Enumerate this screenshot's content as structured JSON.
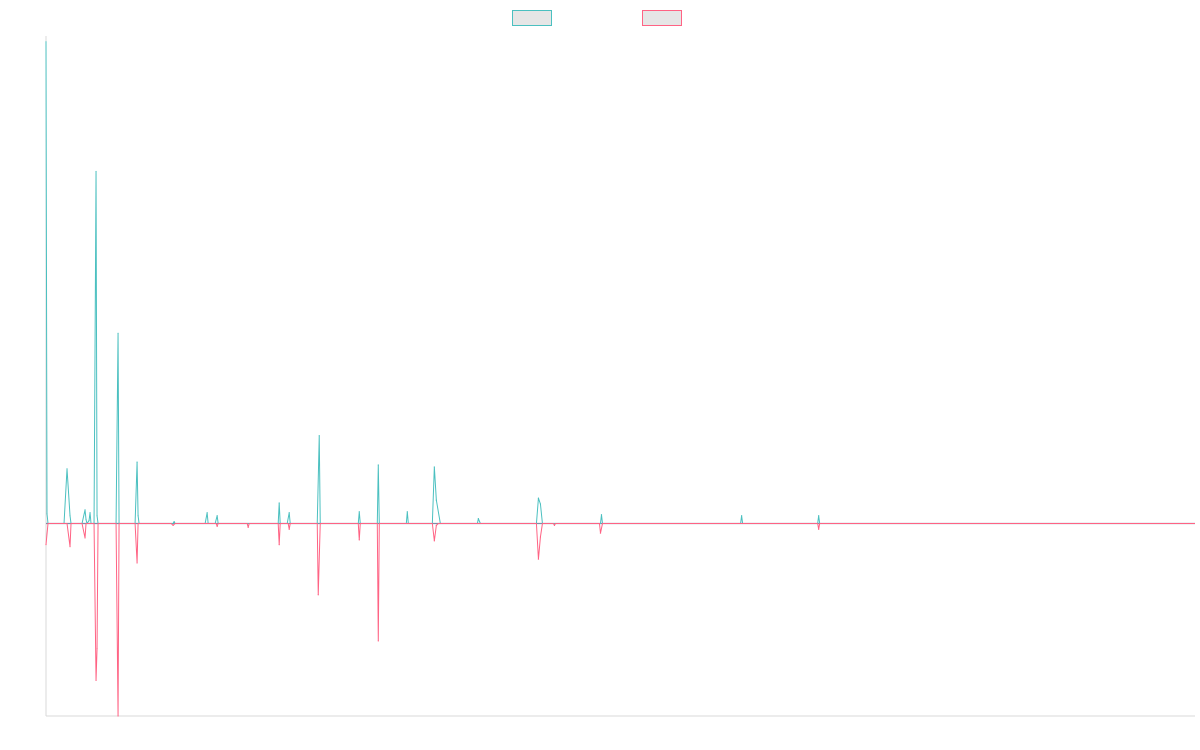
{
  "colors": {
    "series_up": "#4bc0c0",
    "series_down": "#ff6384",
    "legend_fill": "#e6e6e6",
    "axis": "#d9d9d9",
    "baseline": "#7d8ea8"
  },
  "chart_data": {
    "type": "line",
    "title": "",
    "xlabel": "",
    "ylabel": "",
    "legend": {
      "position": "top",
      "entries": [
        {
          "label": ""
        },
        {
          "label": ""
        }
      ]
    },
    "grid": false,
    "ylim": [
      -0.2,
      0.5
    ],
    "x": [
      0,
      1,
      2,
      3,
      4,
      5,
      6,
      7,
      8,
      9,
      10,
      11,
      12,
      13,
      14,
      15,
      16,
      17,
      18,
      19,
      20,
      21,
      22,
      23,
      24,
      25,
      26,
      27,
      28,
      29,
      30,
      31,
      32,
      33,
      34,
      35,
      36,
      37,
      38,
      39,
      40,
      41,
      42,
      43,
      44,
      45,
      46,
      47,
      48,
      49,
      50,
      51,
      52,
      53,
      54,
      55,
      56,
      57,
      58,
      59,
      60,
      61,
      62,
      63,
      64,
      65,
      66,
      67,
      68,
      69,
      70,
      71,
      72,
      73,
      74,
      75,
      76,
      77,
      78,
      79,
      80,
      81,
      82,
      83,
      84,
      85,
      86,
      87,
      88,
      89,
      90,
      91,
      92,
      93,
      94,
      95,
      96,
      97,
      98,
      99,
      100,
      101,
      102,
      103,
      104,
      105,
      106,
      107,
      108,
      109,
      110,
      111,
      112,
      113,
      114,
      115,
      116,
      117,
      118,
      119,
      120,
      121,
      122,
      123,
      124,
      125,
      126,
      127,
      128,
      129,
      130,
      131,
      132,
      133,
      134,
      135,
      136,
      137,
      138,
      139,
      140,
      141,
      142,
      143,
      144,
      145,
      146,
      147,
      148,
      149,
      150,
      151,
      152,
      153,
      154,
      155,
      156,
      157,
      158,
      159,
      160,
      161,
      162,
      163,
      164,
      165,
      166,
      167,
      168,
      169,
      170,
      171,
      172,
      173,
      174,
      175,
      176,
      177,
      178,
      179,
      180,
      181,
      182,
      183,
      184,
      185,
      186,
      187,
      188,
      189,
      190,
      191,
      192,
      193,
      194,
      195,
      196,
      197,
      198,
      199,
      200,
      201,
      202,
      203,
      204,
      205,
      206,
      207,
      208,
      209,
      210,
      211,
      212,
      213,
      214,
      215,
      216,
      217,
      218,
      219,
      220,
      221,
      222,
      223,
      224,
      225,
      226,
      227,
      228,
      229,
      230,
      231,
      232,
      233,
      234,
      235,
      236,
      237,
      238,
      239,
      240,
      241,
      242,
      243,
      244,
      245,
      246,
      247,
      248,
      249,
      250,
      251,
      252,
      253,
      254,
      255,
      256,
      257,
      258,
      259,
      260,
      261,
      262,
      263,
      264,
      265,
      266,
      267,
      268,
      269,
      270,
      271,
      272,
      273,
      274,
      275,
      276,
      277,
      278,
      279,
      280,
      281,
      282,
      283,
      284,
      285,
      286,
      287,
      288,
      289,
      290,
      291,
      292,
      293,
      294,
      295,
      296,
      297,
      298,
      299,
      300,
      301,
      302,
      303,
      304,
      305,
      306,
      307,
      308,
      309,
      310,
      311,
      312,
      313,
      314,
      315,
      316,
      317,
      318,
      319,
      320,
      321,
      322,
      323,
      324,
      325,
      326,
      327,
      328,
      329,
      330,
      331,
      332,
      333,
      334,
      335,
      336,
      337,
      338,
      339,
      340,
      341,
      342,
      343,
      344,
      345,
      346,
      347,
      348,
      349,
      350,
      351,
      352,
      353,
      354,
      355,
      356,
      357,
      358,
      359,
      360,
      361,
      362,
      363,
      364,
      365,
      366,
      367,
      368,
      369,
      370,
      371,
      372,
      373,
      374,
      375,
      376,
      377,
      378,
      379,
      380,
      381,
      382,
      383,
      384,
      385,
      386,
      387,
      388,
      389,
      390,
      391,
      392,
      393,
      394,
      395,
      396,
      397,
      398,
      399,
      400,
      401,
      402,
      403,
      404,
      405,
      406,
      407,
      408,
      409,
      410,
      411,
      412,
      413,
      414,
      415,
      416,
      417,
      418,
      419,
      420,
      421,
      422,
      423,
      424,
      425,
      426,
      427,
      428,
      429,
      430,
      431,
      432,
      433,
      434,
      435,
      436,
      437,
      438,
      439,
      440,
      441,
      442,
      443,
      444,
      445,
      446,
      447,
      448,
      449,
      450,
      451,
      452,
      453,
      454,
      455,
      456,
      457,
      458,
      459,
      460,
      461,
      462,
      463,
      464,
      465,
      466,
      467,
      468,
      469,
      470,
      471,
      472,
      473,
      474,
      475,
      476,
      477,
      478,
      479,
      480,
      481,
      482,
      483,
      484,
      485,
      486,
      487,
      488,
      489,
      490,
      491,
      492,
      493,
      494,
      495,
      496,
      497,
      498,
      499,
      500,
      501,
      502,
      503,
      504,
      505,
      506,
      507,
      508,
      509,
      510,
      511,
      512,
      513,
      514,
      515,
      516,
      517,
      518,
      519,
      520,
      521,
      522,
      523,
      524,
      525,
      526,
      527,
      528,
      529,
      530,
      531,
      532,
      533,
      534,
      535,
      536,
      537,
      538,
      539,
      540,
      541,
      542,
      543,
      544,
      545,
      546,
      547,
      548,
      549,
      550,
      551,
      552,
      553,
      554,
      555,
      556,
      557,
      558,
      559,
      560,
      561,
      562,
      563,
      564,
      565,
      566,
      567,
      568,
      569,
      570,
      571,
      572,
      573,
      574,
      575,
      576,
      577,
      578,
      579,
      580,
      581,
      582,
      583,
      584,
      585,
      586,
      587,
      588,
      589,
      590,
      591,
      592,
      593,
      594,
      595,
      596,
      597,
      598,
      599,
      600,
      601,
      602,
      603,
      604,
      605,
      606,
      607,
      608,
      609,
      610,
      611,
      612,
      613,
      614,
      615,
      616,
      617,
      618,
      619,
      620,
      621,
      622,
      623,
      624,
      625,
      626,
      627,
      628,
      629,
      630,
      631,
      632,
      633,
      634,
      635,
      636,
      637,
      638,
      639,
      640,
      641,
      642,
      643,
      644,
      645,
      646,
      647,
      648,
      649,
      650,
      651,
      652,
      653,
      654,
      655,
      656,
      657,
      658,
      659,
      660,
      661,
      662,
      663,
      664,
      665,
      666,
      667,
      668,
      669,
      670,
      671,
      672,
      673,
      674,
      675,
      676,
      677,
      678,
      679,
      680,
      681,
      682,
      683,
      684,
      685,
      686,
      687,
      688,
      689,
      690,
      691,
      692,
      693,
      694,
      695,
      696,
      697,
      698,
      699,
      700,
      701,
      702,
      703,
      704,
      705,
      706,
      707,
      708,
      709,
      710,
      711,
      712,
      713,
      714,
      715,
      716,
      717,
      718,
      719,
      720,
      721,
      722,
      723,
      724,
      725,
      726,
      727,
      728,
      729,
      730,
      731,
      732,
      733,
      734,
      735,
      736,
      737,
      738,
      739,
      740,
      741,
      742,
      743,
      744,
      745,
      746,
      747,
      748,
      749,
      750,
      751,
      752,
      753,
      754,
      755,
      756,
      757,
      758,
      759,
      760,
      761,
      762,
      763,
      764,
      765,
      766,
      767,
      768,
      769,
      770,
      771,
      772,
      773,
      774,
      775,
      776,
      777,
      778,
      779,
      780,
      781,
      782,
      783,
      784,
      785,
      786,
      787,
      788,
      789,
      790,
      791,
      792,
      793,
      794,
      795,
      796,
      797,
      798,
      799,
      800,
      801,
      802,
      803,
      804,
      805,
      806,
      807,
      808,
      809,
      810,
      811,
      812,
      813,
      814,
      815,
      816,
      817,
      818,
      819,
      820,
      821,
      822,
      823,
      824,
      825,
      826,
      827,
      828,
      829,
      830,
      831,
      832,
      833,
      834,
      835,
      836,
      837,
      838,
      839,
      840,
      841,
      842,
      843,
      844,
      845,
      846,
      847,
      848,
      849,
      850,
      851,
      852,
      853,
      854,
      855,
      856,
      857,
      858,
      859,
      860,
      861,
      862,
      863,
      864,
      865,
      866,
      867,
      868,
      869,
      870,
      871,
      872,
      873,
      874,
      875,
      876,
      877,
      878,
      879,
      880,
      881,
      882,
      883,
      884,
      885,
      886,
      887,
      888,
      889,
      890,
      891,
      892,
      893,
      894,
      895,
      896,
      897,
      898,
      899,
      900,
      901,
      902,
      903,
      904,
      905,
      906,
      907,
      908,
      909,
      910,
      911,
      912,
      913,
      914,
      915,
      916,
      917,
      918,
      919,
      920,
      921,
      922,
      923,
      924,
      925,
      926,
      927,
      928,
      929,
      930,
      931,
      932,
      933,
      934,
      935,
      936,
      937,
      938,
      939,
      940,
      941,
      942,
      943,
      944,
      945,
      946,
      947,
      948,
      949,
      950,
      951,
      952,
      953,
      954,
      955,
      956,
      957,
      958,
      959,
      960,
      961,
      962,
      963,
      964,
      965,
      966,
      967,
      968,
      969,
      970,
      971,
      972,
      973,
      974,
      975,
      976,
      977,
      978,
      979,
      980,
      981,
      982,
      983,
      984,
      985,
      986,
      987,
      988,
      989,
      990,
      991,
      992,
      993,
      994,
      995,
      996,
      997,
      998,
      999,
      1000,
      1001,
      1002,
      1003,
      1004,
      1005,
      1006,
      1007,
      1008,
      1009,
      1010,
      1011,
      1012,
      1013,
      1014,
      1015,
      1016,
      1017,
      1018,
      1019,
      1020,
      1021,
      1022,
      1023,
      1024,
      1025,
      1026,
      1027,
      1028,
      1029,
      1030,
      1031,
      1032,
      1033,
      1034,
      1035,
      1036,
      1037,
      1038,
      1039,
      1040,
      1041,
      1042,
      1043,
      1044,
      1045,
      1046,
      1047,
      1048,
      1049,
      1050,
      1051,
      1052,
      1053,
      1054,
      1055,
      1056,
      1057,
      1058,
      1059,
      1060,
      1061,
      1062,
      1063,
      1064,
      1065,
      1066,
      1067,
      1068,
      1069,
      1070,
      1071,
      1072,
      1073,
      1074,
      1075,
      1076,
      1077,
      1078,
      1079,
      1080,
      1081,
      1082,
      1083,
      1084,
      1085,
      1086,
      1087,
      1088,
      1089,
      1090,
      1091,
      1092,
      1093,
      1094,
      1095,
      1096,
      1097,
      1098,
      1099,
      1100,
      1101,
      1102,
      1103,
      1104,
      1105,
      1106,
      1107,
      1108,
      1109,
      1110,
      1111,
      1112,
      1113,
      1114,
      1115,
      1116,
      1117,
      1118,
      1119,
      1120,
      1121,
      1122,
      1123,
      1124,
      1125,
      1126,
      1127,
      1128,
      1129,
      1130,
      1131,
      1132,
      1133,
      1134,
      1135,
      1136,
      1137,
      1138,
      1139,
      1140,
      1141,
      1142,
      1143,
      1144,
      1145,
      1146,
      1147,
      1148
    ],
    "series": [
      {
        "values": {
          "0": 0.494,
          "1": 0.01,
          "2": 0.0,
          "18": 0.0,
          "21": 0.056,
          "24": 0.008,
          "25": 0.0,
          "36": 0.0,
          "39": 0.014,
          "40": 0.004,
          "41": 0.0,
          "43": 0.003,
          "44": 0.011,
          "45": 0.0,
          "48": 0.0,
          "50": 0.361,
          "51": 0.008,
          "52": 0.0,
          "70": 0.0,
          "72": 0.195,
          "73": 0.0,
          "89": 0.0,
          "91": 0.063,
          "92": 0.008,
          "93": 0.0,
          "127": 0.0,
          "128": 0.002,
          "129": 0.0,
          "159": 0.0,
          "161": 0.011,
          "162": 0.0,
          "169": 0.0,
          "171": 0.008,
          "172": 0.0,
          "232": 0.0,
          "233": 0.021,
          "234": 0.0,
          "241": 0.0,
          "243": 0.011,
          "244": 0.0,
          "271": 0.0,
          "273": 0.09,
          "274": 0.0,
          "312": 0.0,
          "313": 0.012,
          "314": 0.0,
          "331": 0.0,
          "332": 0.06,
          "333": 0.0,
          "360": 0.0,
          "361": 0.012,
          "362": 0.0,
          "386": 0.0,
          "388": 0.058,
          "390": 0.024,
          "394": 0.0,
          "431": 0.0,
          "432": 0.005,
          "434": 0.0,
          "490": 0.0,
          "492": 0.026,
          "494": 0.02,
          "496": 0.0,
          "554": 0.0,
          "555": 0.009,
          "556": 0.0,
          "694": 0.0,
          "695": 0.008,
          "696": 0.0,
          "771": 0.0,
          "772": 0.008,
          "773": 0.0
        }
      },
      {
        "values": {
          "0": -0.022,
          "2": 0.0,
          "21": 0.0,
          "24": -0.024,
          "25": 0.0,
          "36": 0.0,
          "39": -0.015,
          "40": 0.0,
          "48": 0.0,
          "50": -0.163,
          "51": -0.13,
          "52": 0.0,
          "70": 0.0,
          "72": -0.2,
          "73": 0.0,
          "89": 0.0,
          "91": -0.041,
          "92": 0.0,
          "125": 0.0,
          "127": -0.002,
          "129": 0.0,
          "161": 0.0,
          "170": 0.0,
          "171": -0.003,
          "172": 0.0,
          "201": 0.0,
          "202": -0.004,
          "203": 0.0,
          "232": 0.0,
          "233": -0.022,
          "234": 0.0,
          "242": 0.0,
          "243": -0.006,
          "244": 0.0,
          "271": 0.0,
          "272": -0.074,
          "274": 0.0,
          "312": 0.0,
          "313": -0.017,
          "314": 0.0,
          "331": 0.0,
          "332": -0.122,
          "333": 0.0,
          "386": 0.0,
          "388": -0.018,
          "390": -0.002,
          "392": 0.0,
          "490": 0.0,
          "492": -0.037,
          "494": -0.014,
          "496": 0.0,
          "507": 0.0,
          "508": -0.002,
          "509": 0.0,
          "553": 0.0,
          "554": -0.01,
          "556": 0.0,
          "771": 0.0,
          "772": -0.006,
          "773": 0.0
        }
      }
    ]
  }
}
